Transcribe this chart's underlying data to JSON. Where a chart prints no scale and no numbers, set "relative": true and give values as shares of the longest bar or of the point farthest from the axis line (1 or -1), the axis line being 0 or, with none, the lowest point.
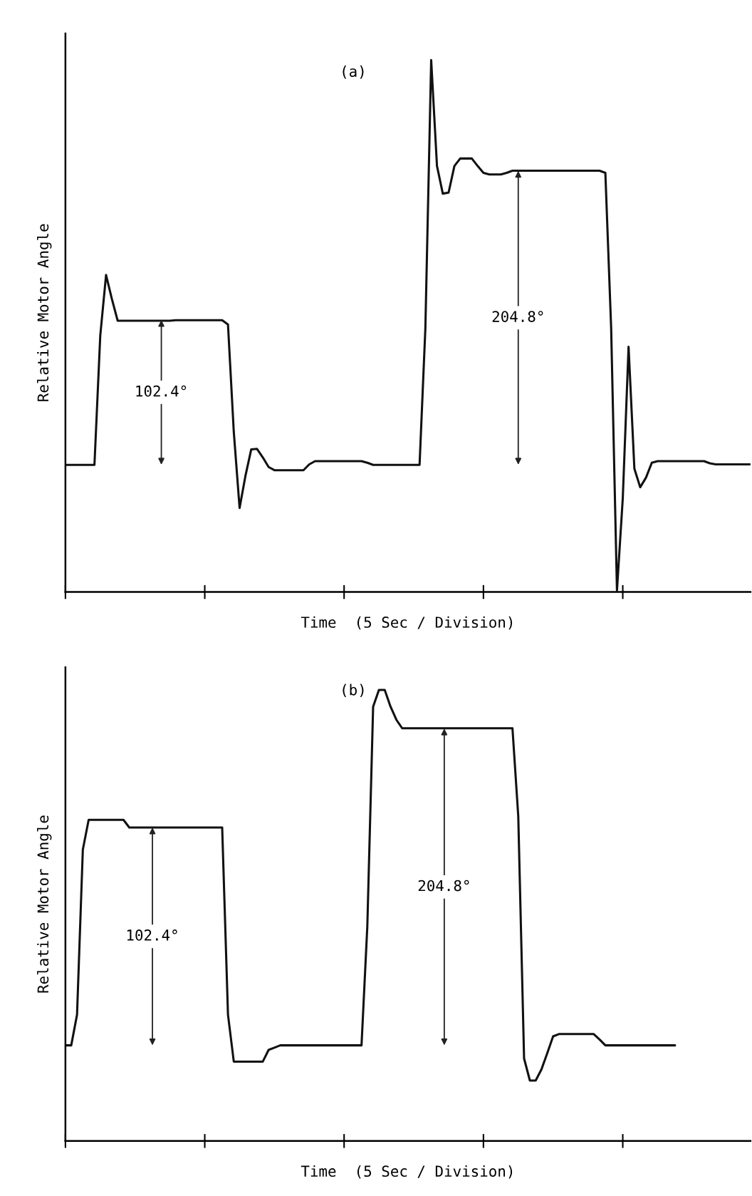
{
  "chart_data": [
    {
      "type": "line",
      "title": "(a)",
      "xlabel": "Time  (5 Sec / Division)",
      "ylabel": "Relative Motor Angle",
      "relative": true,
      "categories": [
        null,
        null,
        null,
        null,
        null,
        null,
        null,
        null,
        null,
        null,
        null,
        null,
        null,
        null,
        null,
        null,
        null,
        null,
        null,
        null,
        null,
        null,
        null,
        null,
        null,
        null,
        null,
        null,
        null,
        null,
        null,
        null,
        null,
        null,
        null,
        null,
        null,
        null,
        null,
        null,
        null,
        null,
        null,
        null,
        null,
        null,
        null,
        null,
        null,
        null,
        null,
        null,
        null,
        null,
        null,
        null,
        null,
        null,
        null,
        null,
        null,
        null,
        null,
        null,
        null,
        null,
        null,
        null,
        null,
        null,
        null,
        null,
        null,
        null,
        null,
        null,
        null,
        null,
        null,
        null,
        null,
        null,
        null,
        null,
        null,
        null,
        null,
        null,
        null,
        null,
        null,
        null,
        null,
        null,
        null,
        null,
        null,
        null,
        null,
        null,
        null,
        null,
        null,
        null,
        null,
        null,
        null,
        null,
        null,
        null,
        null,
        null,
        null,
        null,
        null,
        null,
        null,
        null,
        null
      ],
      "series": [
        {
          "color": "#111111",
          "values": [
            0.239,
            0.239,
            0.239,
            0.239,
            0.239,
            0.239,
            0.482,
            0.596,
            0.551,
            0.51,
            0.51,
            0.51,
            0.51,
            0.51,
            0.51,
            0.51,
            0.51,
            0.51,
            0.51,
            0.511,
            0.511,
            0.511,
            0.511,
            0.511,
            0.511,
            0.511,
            0.511,
            0.511,
            0.503,
            0.301,
            0.158,
            0.218,
            0.268,
            0.269,
            0.253,
            0.235,
            0.229,
            0.229,
            0.229,
            0.229,
            0.229,
            0.229,
            0.24,
            0.246,
            0.246,
            0.246,
            0.246,
            0.246,
            0.246,
            0.246,
            0.246,
            0.246,
            0.243,
            0.239,
            0.239,
            0.239,
            0.239,
            0.239,
            0.239,
            0.239,
            0.239,
            0.239,
            0.496,
            1.0,
            0.801,
            0.749,
            0.751,
            0.801,
            0.815,
            0.815,
            0.815,
            0.801,
            0.788,
            0.785,
            0.785,
            0.785,
            0.788,
            0.792,
            0.792,
            0.792,
            0.792,
            0.792,
            0.792,
            0.792,
            0.792,
            0.792,
            0.792,
            0.792,
            0.792,
            0.792,
            0.792,
            0.792,
            0.792,
            0.788,
            0.496,
            0.003,
            0.176,
            0.461,
            0.232,
            0.197,
            0.215,
            0.243,
            0.246,
            0.246,
            0.246,
            0.246,
            0.246,
            0.246,
            0.246,
            0.246,
            0.246,
            0.242,
            0.24,
            0.24,
            0.24,
            0.24,
            0.24,
            0.24,
            0.24
          ]
        }
      ],
      "annotations": [
        "102.4°",
        "204.8°"
      ]
    },
    {
      "type": "line",
      "title": "(b)",
      "xlabel": "Time  (5 Sec / Division)",
      "ylabel": "Relative Motor Angle",
      "relative": true,
      "categories": [
        null,
        null,
        null,
        null,
        null,
        null,
        null,
        null,
        null,
        null,
        null,
        null,
        null,
        null,
        null,
        null,
        null,
        null,
        null,
        null,
        null,
        null,
        null,
        null,
        null,
        null,
        null,
        null,
        null,
        null,
        null,
        null,
        null,
        null,
        null,
        null,
        null,
        null,
        null,
        null,
        null,
        null,
        null,
        null,
        null,
        null,
        null,
        null,
        null,
        null,
        null,
        null,
        null,
        null,
        null,
        null,
        null,
        null,
        null,
        null,
        null,
        null,
        null,
        null,
        null,
        null,
        null,
        null,
        null,
        null,
        null,
        null,
        null,
        null,
        null,
        null,
        null,
        null,
        null,
        null,
        null,
        null,
        null,
        null,
        null,
        null,
        null,
        null,
        null,
        null,
        null,
        null,
        null,
        null,
        null,
        null,
        null,
        null,
        null,
        null,
        null,
        null,
        null,
        null,
        null,
        null,
        null,
        null,
        null,
        null,
        null,
        null,
        null,
        null,
        null,
        null,
        null,
        null,
        null
      ],
      "series": [
        {
          "color": "#111111",
          "values": [
            0.212,
            0.212,
            0.28,
            0.646,
            0.712,
            0.712,
            0.712,
            0.712,
            0.712,
            0.712,
            0.712,
            0.695,
            0.695,
            0.695,
            0.695,
            0.695,
            0.695,
            0.695,
            0.695,
            0.695,
            0.695,
            0.695,
            0.695,
            0.695,
            0.695,
            0.695,
            0.695,
            0.695,
            0.28,
            0.176,
            0.176,
            0.176,
            0.176,
            0.176,
            0.176,
            0.202,
            0.207,
            0.212,
            0.212,
            0.212,
            0.212,
            0.212,
            0.212,
            0.212,
            0.212,
            0.212,
            0.212,
            0.212,
            0.212,
            0.212,
            0.212,
            0.212,
            0.476,
            0.963,
            1.0,
            1.0,
            0.963,
            0.934,
            0.915,
            0.915,
            0.915,
            0.915,
            0.915,
            0.915,
            0.915,
            0.915,
            0.915,
            0.915,
            0.915,
            0.915,
            0.915,
            0.915,
            0.915,
            0.915,
            0.915,
            0.915,
            0.915,
            0.915,
            0.72,
            0.183,
            0.134,
            0.134,
            0.159,
            0.195,
            0.232,
            0.237,
            0.237,
            0.237,
            0.237,
            0.237,
            0.237,
            0.237,
            0.225,
            0.212,
            0.212,
            0.212,
            0.212,
            0.212,
            0.212,
            0.212,
            0.212,
            0.212,
            0.212,
            0.212,
            0.212,
            0.212,
            null,
            null,
            null,
            null,
            null,
            null,
            null,
            null,
            null,
            null,
            null,
            null,
            null
          ]
        }
      ],
      "annotations": [
        "102.4°",
        "204.8°"
      ]
    }
  ]
}
